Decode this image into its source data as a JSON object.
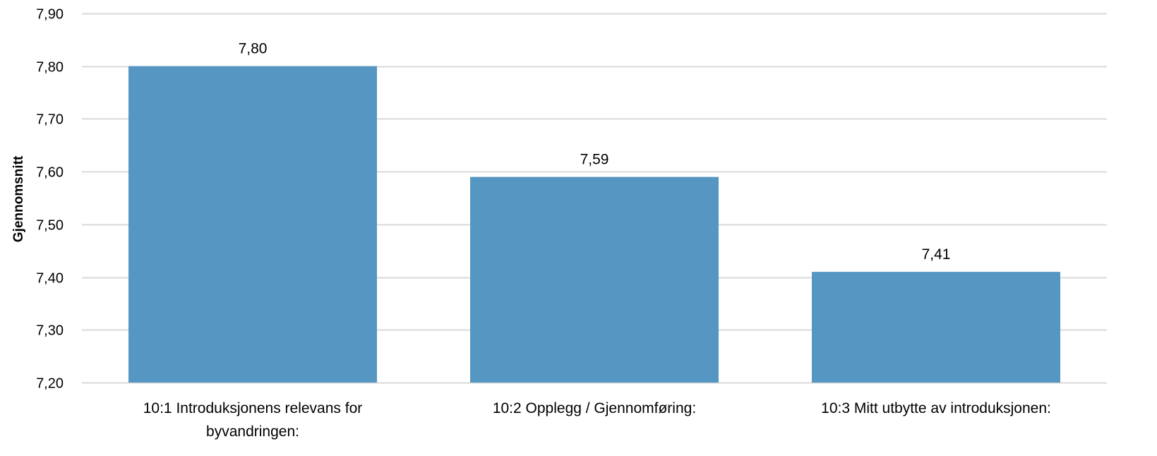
{
  "chart_data": {
    "type": "bar",
    "categories": [
      [
        "10:1 Introduksjonens relevans for",
        "byvandringen:"
      ],
      [
        "10:2 Opplegg / Gjennomføring:"
      ],
      [
        "10:3 Mitt utbytte av introduksjonen:"
      ]
    ],
    "values": [
      7.8,
      7.59,
      7.41
    ],
    "data_labels": [
      "7,80",
      "7,59",
      "7,41"
    ],
    "xlabel": "",
    "ylabel": "Gjennomsnitt",
    "ylim": [
      7.2,
      7.9
    ],
    "yticks": [
      7.2,
      7.3,
      7.4,
      7.5,
      7.6,
      7.7,
      7.8,
      7.9
    ],
    "ytick_labels": [
      "7,20",
      "7,30",
      "7,40",
      "7,50",
      "7,60",
      "7,70",
      "7,80",
      "7,90"
    ],
    "grid": true,
    "legend": "none",
    "colors": {
      "bar": "#5696C3",
      "grid": "#D9D9D9",
      "text": "#000000"
    }
  }
}
